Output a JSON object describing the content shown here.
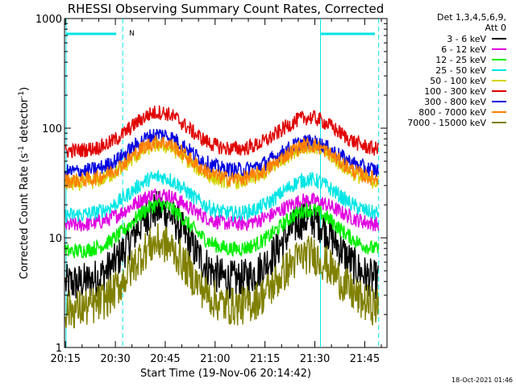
{
  "chart_data": {
    "type": "line",
    "title": "RHESSI Observing Summary Count Rates, Corrected",
    "xlabel": "Start Time (19-Nov-06 20:14:42)",
    "ylabel_main": "Corrected Count Rate (s",
    "ylabel_sup1": "-1",
    "ylabel_mid": " detector",
    "ylabel_sup2": "-1",
    "ylabel_end": ")",
    "yscale": "log",
    "ylim": [
      1,
      1000
    ],
    "xlim_minutes": [
      0,
      97
    ],
    "x_ticks": [
      "20:15",
      "20:30",
      "20:45",
      "21:00",
      "21:15",
      "21:30",
      "21:45"
    ],
    "y_ticks": [
      "1",
      "10",
      "100",
      "1000"
    ],
    "footer_date": "18-Oct-2021 01:46",
    "legend": {
      "header1": "Det 1,3,4,5,6,9,",
      "header2": "Att 0",
      "placement": "outside-right-top"
    },
    "annotations": {
      "night_bar_label": "N",
      "night_start_min": 17.5,
      "day_start_min": 77
    },
    "x_start": "20:14:42",
    "series": [
      {
        "name": "3 - 6 keV",
        "color": "#000000",
        "base": 3.8,
        "peak1": 18,
        "peak2": 15
      },
      {
        "name": "6 - 12 keV",
        "color": "#e000e0",
        "base": 13,
        "peak1": 25,
        "peak2": 22
      },
      {
        "name": "12 - 25 keV",
        "color": "#00ee00",
        "base": 7.5,
        "peak1": 20,
        "peak2": 18
      },
      {
        "name": "25 - 50 keV",
        "color": "#00e5e5",
        "base": 16,
        "peak1": 36,
        "peak2": 34
      },
      {
        "name": "50 - 100 keV",
        "color": "#d4d400",
        "base": 31,
        "peak1": 70,
        "peak2": 68
      },
      {
        "name": "100 - 300 keV",
        "color": "#e00000",
        "base": 62,
        "peak1": 140,
        "peak2": 125
      },
      {
        "name": "300 - 800 keV",
        "color": "#0000e0",
        "base": 40,
        "peak1": 88,
        "peak2": 75
      },
      {
        "name": "800 - 7000 keV",
        "color": "#ff8000",
        "base": 33,
        "peak1": 75,
        "peak2": 70
      },
      {
        "name": "7000 - 15000 keV",
        "color": "#808000",
        "base": 2.2,
        "peak1": 9,
        "peak2": 7
      }
    ]
  }
}
